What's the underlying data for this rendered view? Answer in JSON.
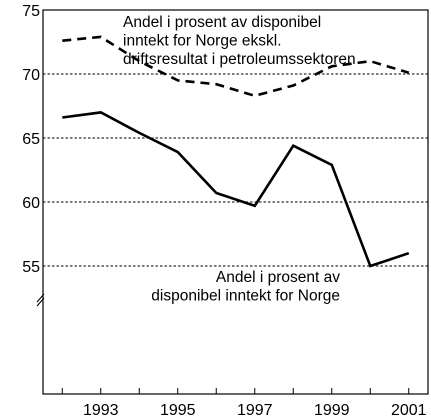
{
  "chart_data": {
    "type": "line",
    "x": [
      1992,
      1993,
      1994,
      1995,
      1996,
      1997,
      1998,
      1999,
      2000,
      2001
    ],
    "series": [
      {
        "name": "Andel i prosent av disponibel inntekt for Norge ekskl. driftsresultat i petroleumssektoren",
        "style": "dashed",
        "values": [
          72.6,
          72.9,
          71.0,
          69.5,
          69.2,
          68.3,
          69.1,
          70.6,
          71.0,
          70.1
        ]
      },
      {
        "name": "Andel i prosent av disponibel inntekt for Norge",
        "style": "solid",
        "values": [
          66.6,
          67.0,
          65.4,
          63.9,
          60.7,
          59.7,
          64.4,
          62.9,
          55.0,
          56.0
        ]
      }
    ],
    "annotations": [
      {
        "series": 0,
        "lines": [
          "Andel i prosent av disponibel",
          "inntekt for Norge ekskl.",
          "driftsresultat i petroleumssektoren"
        ]
      },
      {
        "series": 1,
        "lines": [
          "Andel i prosent av",
          "disponibel inntekt for Norge"
        ]
      }
    ],
    "ylim": [
      45,
      75
    ],
    "yticks": [
      55,
      60,
      65,
      70,
      75
    ],
    "ytick_labels": [
      "55",
      "60",
      "65",
      "70",
      "75"
    ],
    "xlim": [
      1991.5,
      2001.5
    ],
    "xticks": [
      1992,
      1993,
      1994,
      1995,
      1996,
      1997,
      1998,
      1999,
      2000,
      2001
    ],
    "xtick_labels": [
      "1993",
      "1995",
      "1997",
      "1999",
      "2001"
    ],
    "xtick_label_values": [
      1993,
      1995,
      1997,
      1999,
      2001
    ],
    "grid": "horizontal dashed",
    "axis_break": true,
    "title": "",
    "xlabel": "",
    "ylabel": ""
  }
}
